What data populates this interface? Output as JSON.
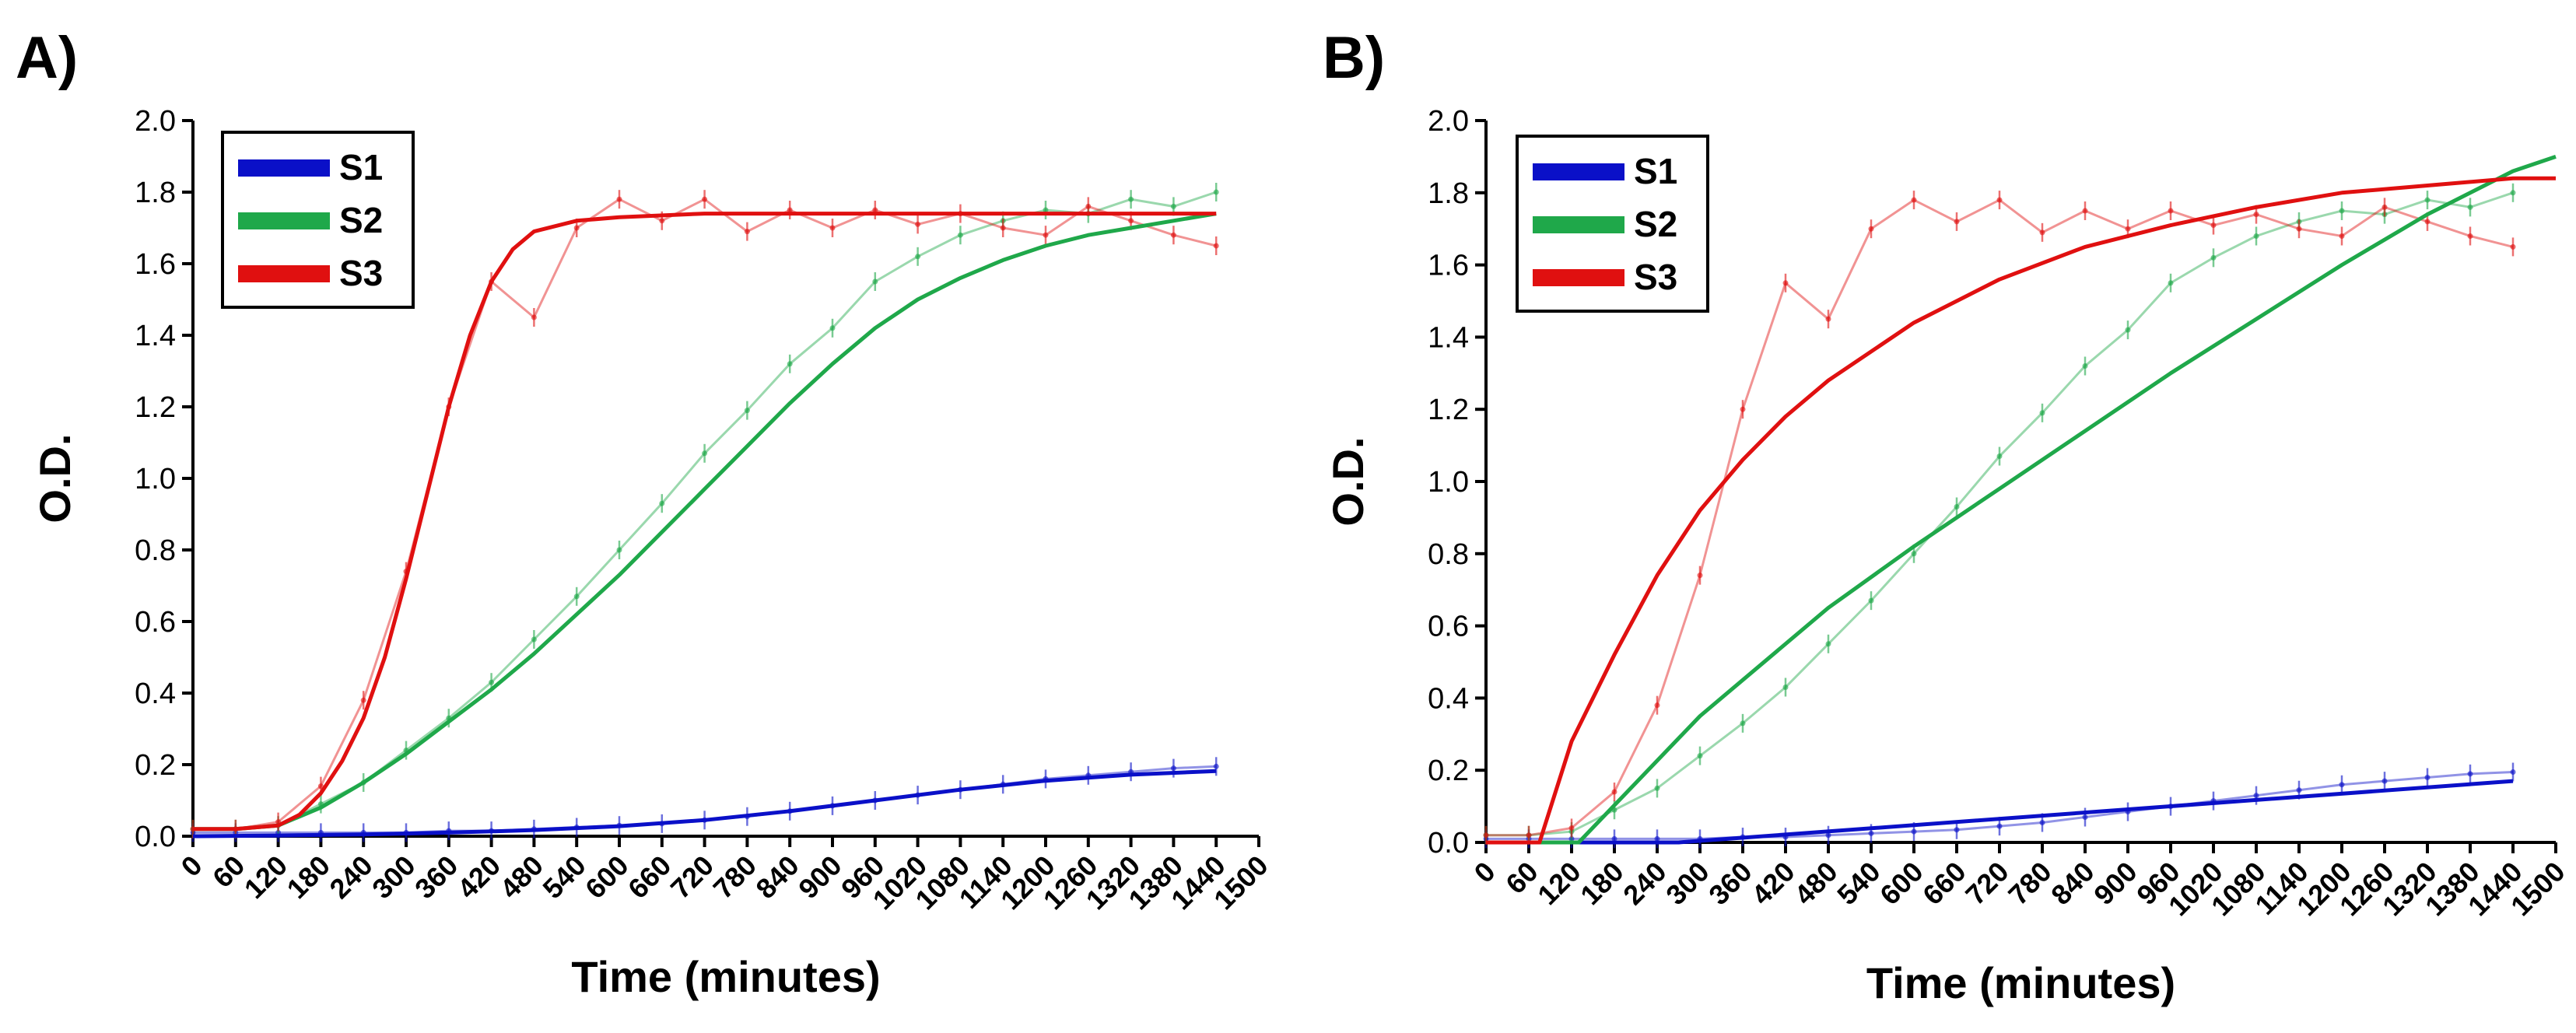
{
  "chart_data": [
    {
      "panel": "A)",
      "type": "line",
      "xlabel": "Time (minutes)",
      "ylabel": "O.D.",
      "xlim": [
        0,
        1500
      ],
      "ylim": [
        0,
        2.0
      ],
      "xticks": [
        0,
        60,
        120,
        180,
        240,
        300,
        360,
        420,
        480,
        540,
        600,
        660,
        720,
        780,
        840,
        900,
        960,
        1020,
        1080,
        1140,
        1200,
        1260,
        1320,
        1380,
        1440,
        1500
      ],
      "yticks": [
        0.0,
        0.2,
        0.4,
        0.6,
        0.8,
        1.0,
        1.2,
        1.4,
        1.6,
        1.8,
        2.0
      ],
      "legend_position": "top-left",
      "series": [
        {
          "name": "S1",
          "color": "#0a10c8",
          "fit": {
            "x": [
              0,
              120,
              240,
              360,
              480,
              600,
              720,
              840,
              960,
              1080,
              1200,
              1320,
              1440
            ],
            "y": [
              0.0,
              0.002,
              0.005,
              0.01,
              0.017,
              0.028,
              0.045,
              0.07,
              0.1,
              0.13,
              0.155,
              0.172,
              0.182
            ]
          },
          "observed": {
            "x": [
              0,
              60,
              120,
              180,
              240,
              300,
              360,
              420,
              480,
              540,
              600,
              660,
              720,
              780,
              840,
              900,
              960,
              1020,
              1080,
              1140,
              1200,
              1260,
              1320,
              1380,
              1440
            ],
            "y": [
              0.01,
              0.01,
              0.01,
              0.01,
              0.01,
              0.01,
              0.015,
              0.015,
              0.02,
              0.025,
              0.03,
              0.035,
              0.045,
              0.055,
              0.07,
              0.085,
              0.1,
              0.115,
              0.13,
              0.145,
              0.16,
              0.17,
              0.18,
              0.19,
              0.195
            ]
          }
        },
        {
          "name": "S2",
          "color": "#1fa84a",
          "fit": {
            "x": [
              0,
              60,
              120,
              180,
              240,
              300,
              360,
              420,
              480,
              540,
              600,
              660,
              720,
              780,
              840,
              900,
              960,
              1020,
              1080,
              1140,
              1200,
              1260,
              1320,
              1380,
              1440
            ],
            "y": [
              0.02,
              0.02,
              0.03,
              0.08,
              0.15,
              0.23,
              0.32,
              0.41,
              0.51,
              0.62,
              0.73,
              0.85,
              0.97,
              1.09,
              1.21,
              1.32,
              1.42,
              1.5,
              1.56,
              1.61,
              1.65,
              1.68,
              1.7,
              1.72,
              1.74
            ]
          },
          "observed": {
            "x": [
              0,
              60,
              120,
              180,
              240,
              300,
              360,
              420,
              480,
              540,
              600,
              660,
              720,
              780,
              840,
              900,
              960,
              1020,
              1080,
              1140,
              1200,
              1260,
              1320,
              1380,
              1440
            ],
            "y": [
              0.02,
              0.02,
              0.03,
              0.09,
              0.15,
              0.24,
              0.33,
              0.43,
              0.55,
              0.67,
              0.8,
              0.93,
              1.07,
              1.19,
              1.32,
              1.42,
              1.55,
              1.62,
              1.68,
              1.72,
              1.75,
              1.74,
              1.78,
              1.76,
              1.8
            ]
          }
        },
        {
          "name": "S3",
          "color": "#e01010",
          "fit": {
            "x": [
              0,
              60,
              120,
              150,
              180,
              210,
              240,
              270,
              300,
              330,
              360,
              390,
              420,
              450,
              480,
              540,
              600,
              720,
              840,
              960,
              1080,
              1200,
              1320,
              1440
            ],
            "y": [
              0.02,
              0.02,
              0.03,
              0.06,
              0.12,
              0.21,
              0.33,
              0.5,
              0.72,
              0.96,
              1.2,
              1.4,
              1.55,
              1.64,
              1.69,
              1.72,
              1.73,
              1.74,
              1.74,
              1.74,
              1.74,
              1.74,
              1.74,
              1.74
            ]
          },
          "observed": {
            "x": [
              0,
              60,
              120,
              180,
              240,
              300,
              360,
              420,
              480,
              540,
              600,
              660,
              720,
              780,
              840,
              900,
              960,
              1020,
              1080,
              1140,
              1200,
              1260,
              1320,
              1380,
              1440
            ],
            "y": [
              0.02,
              0.02,
              0.04,
              0.14,
              0.38,
              0.74,
              1.2,
              1.55,
              1.45,
              1.7,
              1.78,
              1.72,
              1.78,
              1.69,
              1.75,
              1.7,
              1.75,
              1.71,
              1.74,
              1.7,
              1.68,
              1.76,
              1.72,
              1.68,
              1.65
            ]
          }
        }
      ]
    },
    {
      "panel": "B)",
      "type": "line",
      "xlabel": "Time (minutes)",
      "ylabel": "O.D.",
      "xlim": [
        0,
        1500
      ],
      "ylim": [
        0,
        2.0
      ],
      "xticks": [
        0,
        60,
        120,
        180,
        240,
        300,
        360,
        420,
        480,
        540,
        600,
        660,
        720,
        780,
        840,
        900,
        960,
        1020,
        1080,
        1140,
        1200,
        1260,
        1320,
        1380,
        1440,
        1500
      ],
      "yticks": [
        0.0,
        0.2,
        0.4,
        0.6,
        0.8,
        1.0,
        1.2,
        1.4,
        1.6,
        1.8,
        2.0
      ],
      "legend_position": "top-left",
      "series": [
        {
          "name": "S1",
          "color": "#0a10c8",
          "fit": {
            "x": [
              0,
              270,
              1440
            ],
            "y": [
              0.0,
              0.0,
              0.17
            ]
          },
          "observed": {
            "x": [
              0,
              60,
              120,
              180,
              240,
              300,
              360,
              420,
              480,
              540,
              600,
              660,
              720,
              780,
              840,
              900,
              960,
              1020,
              1080,
              1140,
              1200,
              1260,
              1320,
              1380,
              1440
            ],
            "y": [
              0.01,
              0.01,
              0.01,
              0.01,
              0.01,
              0.01,
              0.015,
              0.015,
              0.02,
              0.025,
              0.03,
              0.035,
              0.045,
              0.055,
              0.07,
              0.085,
              0.1,
              0.115,
              0.13,
              0.145,
              0.16,
              0.17,
              0.18,
              0.19,
              0.195
            ]
          }
        },
        {
          "name": "S2",
          "color": "#1fa84a",
          "fit": {
            "x": [
              0,
              130,
              300,
              480,
              600,
              720,
              840,
              960,
              1080,
              1200,
              1320,
              1440,
              1500
            ],
            "y": [
              0.0,
              0.0,
              0.35,
              0.65,
              0.82,
              0.98,
              1.14,
              1.3,
              1.45,
              1.6,
              1.74,
              1.86,
              1.9
            ]
          },
          "observed": {
            "x": [
              0,
              60,
              120,
              180,
              240,
              300,
              360,
              420,
              480,
              540,
              600,
              660,
              720,
              780,
              840,
              900,
              960,
              1020,
              1080,
              1140,
              1200,
              1260,
              1320,
              1380,
              1440
            ],
            "y": [
              0.02,
              0.02,
              0.03,
              0.09,
              0.15,
              0.24,
              0.33,
              0.43,
              0.55,
              0.67,
              0.8,
              0.93,
              1.07,
              1.19,
              1.32,
              1.42,
              1.55,
              1.62,
              1.68,
              1.72,
              1.75,
              1.74,
              1.78,
              1.76,
              1.8
            ]
          }
        },
        {
          "name": "S3",
          "color": "#e01010",
          "fit": {
            "x": [
              0,
              75,
              120,
              180,
              240,
              300,
              360,
              420,
              480,
              600,
              720,
              840,
              960,
              1080,
              1200,
              1320,
              1440,
              1500
            ],
            "y": [
              0.0,
              0.0,
              0.28,
              0.52,
              0.74,
              0.92,
              1.06,
              1.18,
              1.28,
              1.44,
              1.56,
              1.65,
              1.71,
              1.76,
              1.8,
              1.82,
              1.84,
              1.84
            ]
          },
          "observed": {
            "x": [
              0,
              60,
              120,
              180,
              240,
              300,
              360,
              420,
              480,
              540,
              600,
              660,
              720,
              780,
              840,
              900,
              960,
              1020,
              1080,
              1140,
              1200,
              1260,
              1320,
              1380,
              1440
            ],
            "y": [
              0.02,
              0.02,
              0.04,
              0.14,
              0.38,
              0.74,
              1.2,
              1.55,
              1.45,
              1.7,
              1.78,
              1.72,
              1.78,
              1.69,
              1.75,
              1.7,
              1.75,
              1.71,
              1.74,
              1.7,
              1.68,
              1.76,
              1.72,
              1.68,
              1.65
            ]
          }
        }
      ]
    }
  ]
}
